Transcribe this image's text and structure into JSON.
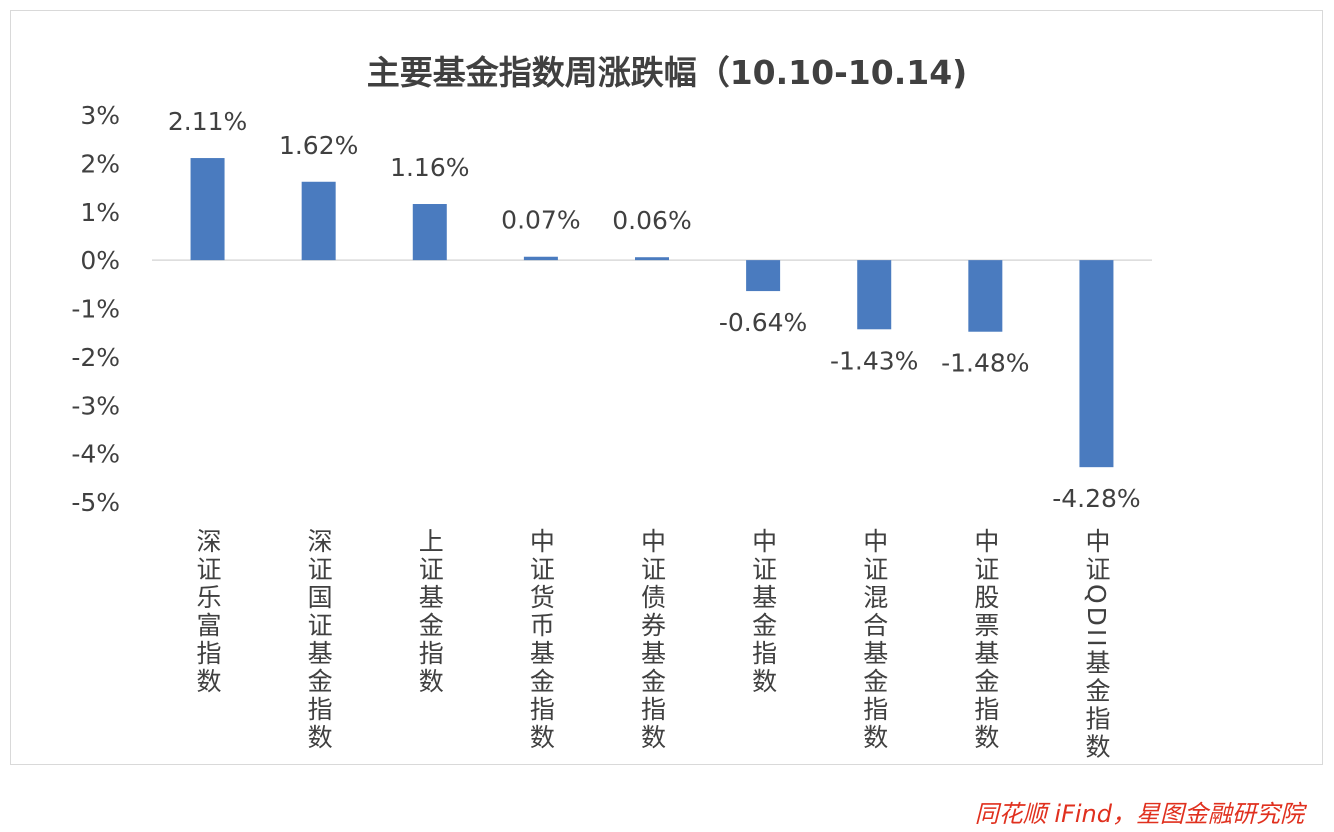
{
  "chart_data": {
    "type": "bar",
    "title": "主要基金指数周涨跌幅（10.10-10.14)",
    "categories": [
      "深证乐富指数",
      "深证国证基金指数",
      "上证基金指数",
      "中证货币基金指数",
      "中证债券基金指数",
      "中证基金指数",
      "中证混合基金指数",
      "中证股票基金指数",
      "中证QDII基金指数"
    ],
    "values": [
      2.11,
      1.62,
      1.16,
      0.07,
      0.06,
      -0.64,
      -1.43,
      -1.48,
      -4.28
    ],
    "data_labels": [
      "2.11%",
      "1.62%",
      "1.16%",
      "0.07%",
      "0.06%",
      "-0.64%",
      "-1.43%",
      "-1.48%",
      "-4.28%"
    ],
    "y_ticks": [
      3,
      2,
      1,
      0,
      -1,
      -2,
      -3,
      -4,
      -5
    ],
    "y_tick_labels": [
      "3%",
      "2%",
      "1%",
      "0%",
      "-1%",
      "-2%",
      "-3%",
      "-4%",
      "-5%"
    ],
    "ylim": [
      -5,
      3
    ],
    "grid": false,
    "legend": "none",
    "bar_color": "#4a7bbf",
    "xlabel": "",
    "ylabel": ""
  },
  "source": "同花顺 iFind，星图金融研究院",
  "colors": {
    "text": "#404040",
    "source": "#e0301e"
  }
}
